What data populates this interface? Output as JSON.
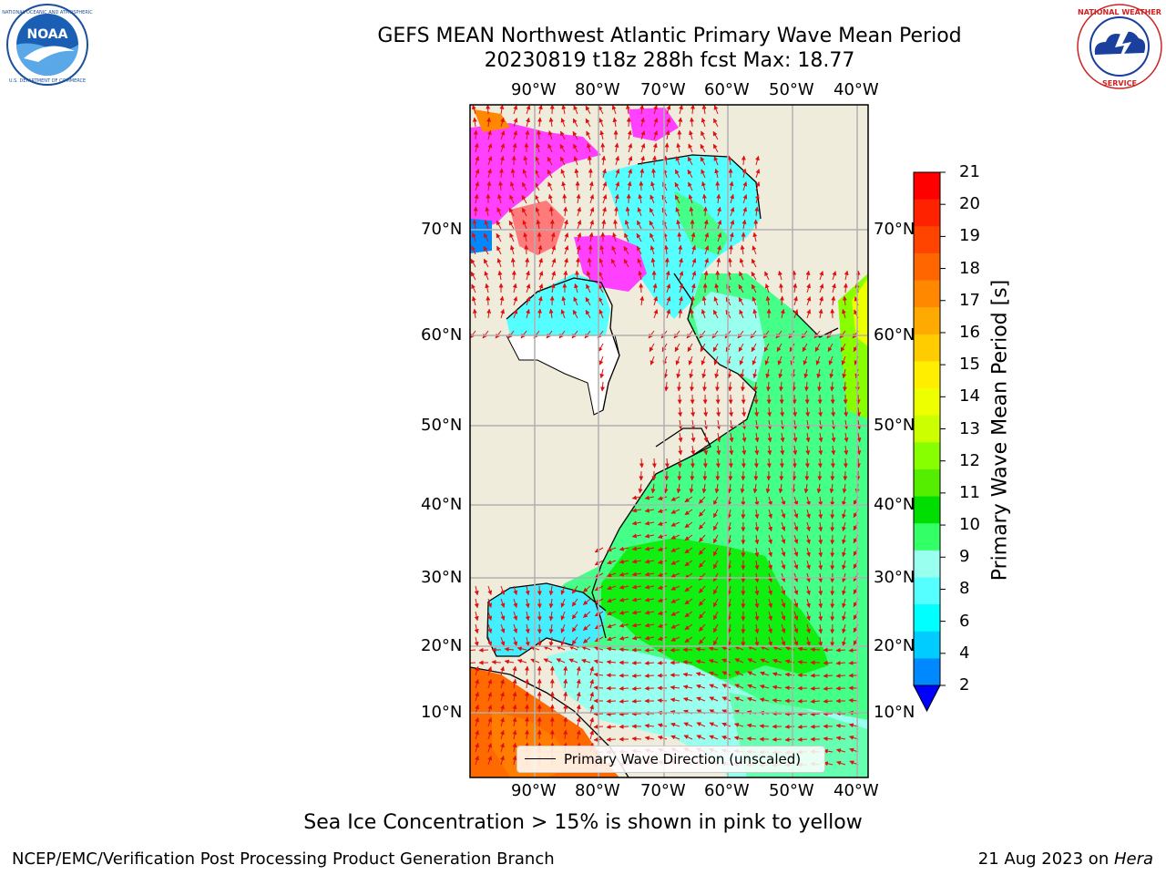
{
  "title": {
    "line1": "GEFS MEAN Northwest Atlantic Primary Wave Mean Period",
    "line2": "20230819 t18z 288h fcst   Max: 18.77"
  },
  "logos": {
    "left": {
      "name": "NOAA",
      "ring_text": "NATIONAL OCEANIC AND ATMOSPHERIC ADMINISTRATION · U.S. DEPARTMENT OF COMMERCE"
    },
    "right": {
      "name": "NATIONAL WEATHER SERVICE"
    }
  },
  "map": {
    "lon_labels": [
      "90°W",
      "80°W",
      "70°W",
      "60°W",
      "50°W",
      "40°W"
    ],
    "lat_labels": [
      "70°N",
      "60°N",
      "50°N",
      "40°N",
      "30°N",
      "20°N",
      "10°N"
    ],
    "legend_label": "Primary Wave Direction (unscaled)",
    "land_color": "#efecdc",
    "arrow_color": "#e01010",
    "grid": true,
    "regions": [
      {
        "name": "Greenland/Arctic sea ice",
        "level": "sea-ice",
        "color": "#ff40ff"
      },
      {
        "name": "Baffin Bay",
        "level": 8,
        "color": "#66ffff"
      },
      {
        "name": "Labrador Sea / Mid-Atlantic",
        "level": 9,
        "color": "#44ff88"
      },
      {
        "name": "Western subtropical Atlantic",
        "level": 10,
        "color": "#11ee11"
      },
      {
        "name": "Gulf of Mexico",
        "level": 7,
        "color": "#44eeff"
      },
      {
        "name": "Caribbean",
        "level": 8,
        "color": "#99ffee"
      },
      {
        "name": "East Pacific",
        "level": 17,
        "color": "#ff6a00"
      },
      {
        "name": "NE Atlantic edge",
        "level": 13,
        "color": "#ddee00"
      }
    ]
  },
  "colorbar": {
    "label": "Primary Wave Mean Period [s]",
    "ticks": [
      "21",
      "20",
      "19",
      "18",
      "17",
      "16",
      "15",
      "14",
      "13",
      "12",
      "11",
      "10",
      "9",
      "8",
      "6",
      "4",
      "2"
    ],
    "colors": [
      "#ff0000",
      "#ff2200",
      "#ff4400",
      "#ff6600",
      "#ff8800",
      "#ffaa00",
      "#ffcc00",
      "#ffee00",
      "#eeff00",
      "#ccff00",
      "#88ff00",
      "#55ee00",
      "#00dd00",
      "#33ff66",
      "#99ffee",
      "#55ffff",
      "#00ffff",
      "#00ccff",
      "#0088ff",
      "#0000ff"
    ]
  },
  "caption": "Sea Ice Concentration > 15% is shown in pink to yellow",
  "footer": {
    "left": "NCEP/EMC/Verification Post Processing Product Generation Branch",
    "right_prefix": "21 Aug 2023 on ",
    "right_machine": "Hera"
  }
}
